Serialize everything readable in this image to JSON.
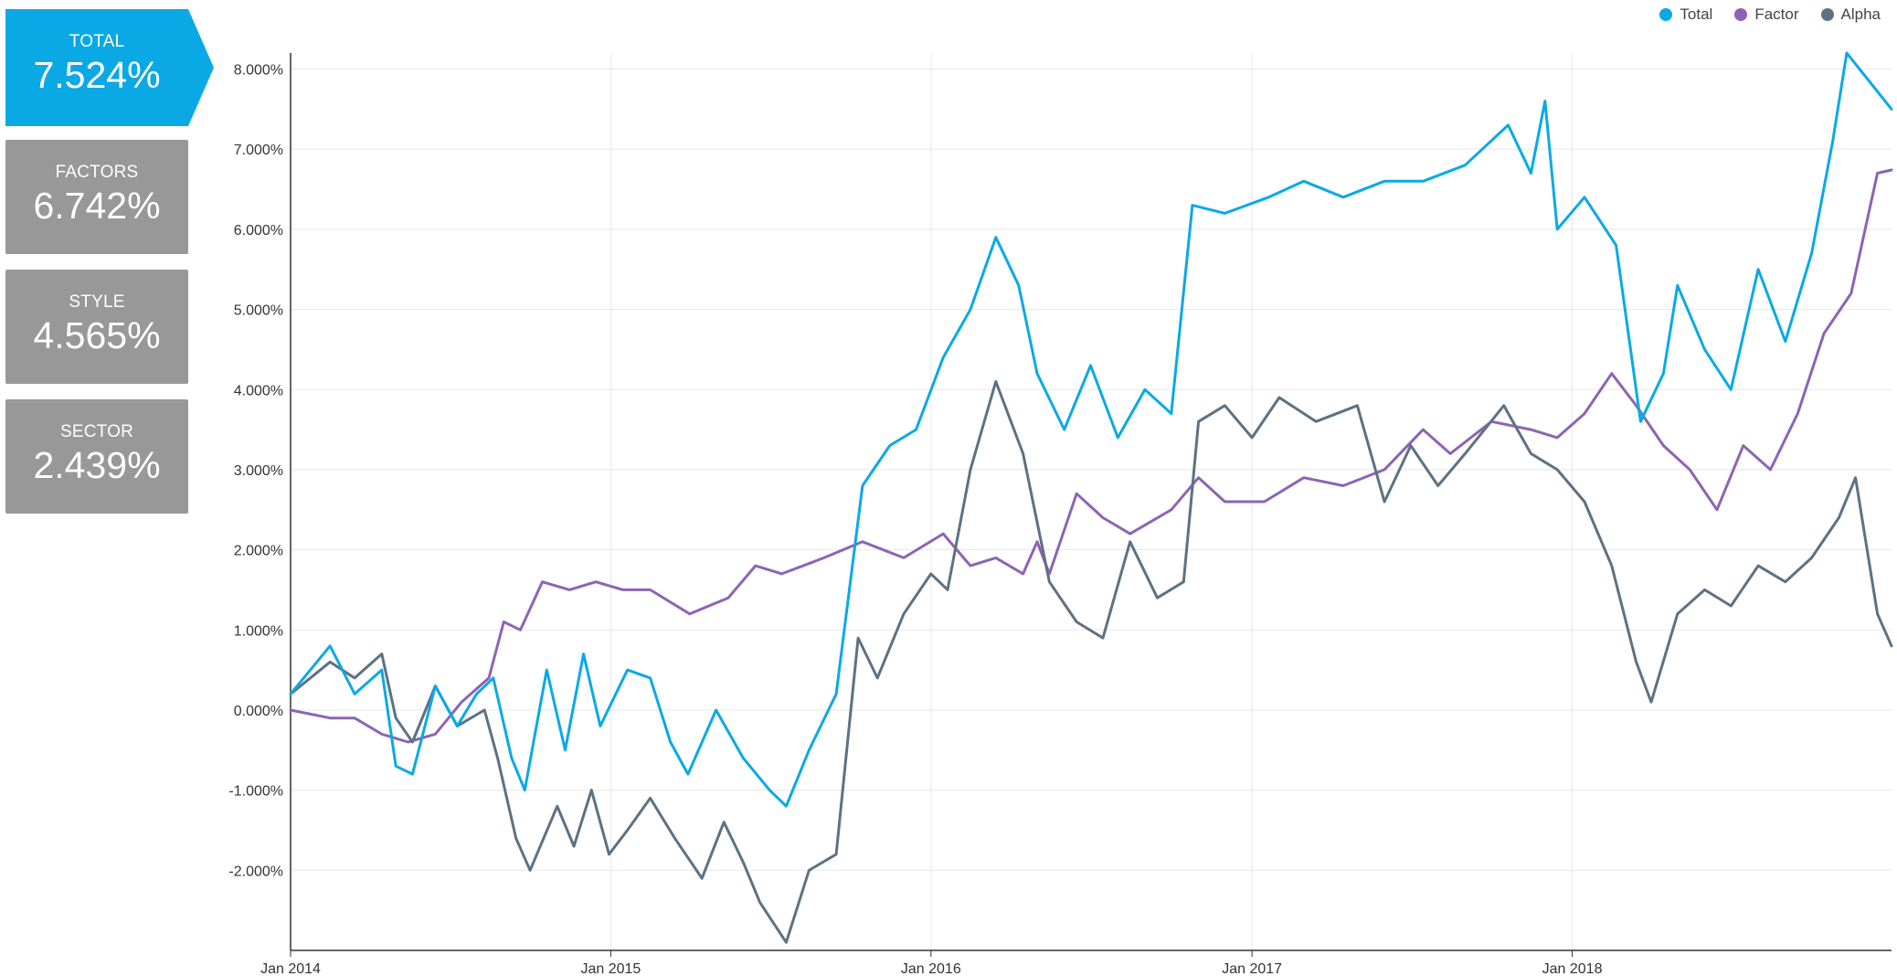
{
  "cards": [
    {
      "label": "TOTAL",
      "value": "7.524%"
    },
    {
      "label": "FACTORS",
      "value": "6.742%"
    },
    {
      "label": "STYLE",
      "value": "4.565%"
    },
    {
      "label": "SECTOR",
      "value": "2.439%"
    }
  ],
  "colors": {
    "total": "#0aa9e6",
    "factor": "#8e63b5",
    "alpha": "#5c7283",
    "card": "#989898"
  },
  "chart_data": {
    "type": "line",
    "x_axis": {
      "ticks": [
        "Jan 2014",
        "Jan 2015",
        "Jan 2016",
        "Jan 2017",
        "Jan 2018"
      ],
      "range": [
        "2014-01-01",
        "2018-12-31"
      ]
    },
    "y_axis": {
      "ticks": [
        "-2.000%",
        "-1.000%",
        "0.000%",
        "1.000%",
        "2.000%",
        "3.000%",
        "4.000%",
        "5.000%",
        "6.000%",
        "7.000%",
        "8.000%"
      ],
      "range": [
        -3.0,
        8.2
      ]
    },
    "grid": true,
    "legend_position": "top-right",
    "series": [
      {
        "name": "Total",
        "points": [
          [
            "2014-01-01",
            0.2
          ],
          [
            "2014-02-15",
            0.8
          ],
          [
            "2014-03-15",
            0.2
          ],
          [
            "2014-04-15",
            0.5
          ],
          [
            "2014-05-01",
            -0.7
          ],
          [
            "2014-05-20",
            -0.8
          ],
          [
            "2014-06-15",
            0.3
          ],
          [
            "2014-07-10",
            -0.2
          ],
          [
            "2014-08-01",
            0.2
          ],
          [
            "2014-08-20",
            0.4
          ],
          [
            "2014-09-10",
            -0.6
          ],
          [
            "2014-09-25",
            -1.0
          ],
          [
            "2014-10-20",
            0.5
          ],
          [
            "2014-11-10",
            -0.5
          ],
          [
            "2014-12-01",
            0.7
          ],
          [
            "2014-12-20",
            -0.2
          ],
          [
            "2015-01-20",
            0.5
          ],
          [
            "2015-02-15",
            0.4
          ],
          [
            "2015-03-10",
            -0.4
          ],
          [
            "2015-03-30",
            -0.8
          ],
          [
            "2015-05-01",
            0.0
          ],
          [
            "2015-06-01",
            -0.6
          ],
          [
            "2015-07-01",
            -1.0
          ],
          [
            "2015-07-20",
            -1.2
          ],
          [
            "2015-08-15",
            -0.5
          ],
          [
            "2015-09-15",
            0.2
          ],
          [
            "2015-10-15",
            2.8
          ],
          [
            "2015-11-15",
            3.3
          ],
          [
            "2015-12-15",
            3.5
          ],
          [
            "2016-01-15",
            4.4
          ],
          [
            "2016-02-15",
            5.0
          ],
          [
            "2016-03-15",
            5.9
          ],
          [
            "2016-04-10",
            5.3
          ],
          [
            "2016-05-01",
            4.2
          ],
          [
            "2016-06-01",
            3.5
          ],
          [
            "2016-07-01",
            4.3
          ],
          [
            "2016-08-01",
            3.4
          ],
          [
            "2016-09-01",
            4.0
          ],
          [
            "2016-10-01",
            3.7
          ],
          [
            "2016-10-25",
            6.3
          ],
          [
            "2016-12-01",
            6.2
          ],
          [
            "2017-01-20",
            6.4
          ],
          [
            "2017-03-01",
            6.6
          ],
          [
            "2017-04-15",
            6.4
          ],
          [
            "2017-06-01",
            6.6
          ],
          [
            "2017-07-15",
            6.6
          ],
          [
            "2017-09-01",
            6.8
          ],
          [
            "2017-10-20",
            7.3
          ],
          [
            "2017-11-15",
            6.7
          ],
          [
            "2017-12-01",
            7.6
          ],
          [
            "2017-12-15",
            6.0
          ],
          [
            "2018-01-15",
            6.4
          ],
          [
            "2018-02-20",
            5.8
          ],
          [
            "2018-03-20",
            3.6
          ],
          [
            "2018-04-15",
            4.2
          ],
          [
            "2018-05-01",
            5.3
          ],
          [
            "2018-06-01",
            4.5
          ],
          [
            "2018-07-01",
            4.0
          ],
          [
            "2018-08-01",
            5.5
          ],
          [
            "2018-09-01",
            4.6
          ],
          [
            "2018-10-01",
            5.7
          ],
          [
            "2018-10-25",
            7.1
          ],
          [
            "2018-11-10",
            8.2
          ],
          [
            "2018-12-31",
            7.5
          ]
        ]
      },
      {
        "name": "Factor",
        "points": [
          [
            "2014-01-01",
            0.0
          ],
          [
            "2014-02-15",
            -0.1
          ],
          [
            "2014-03-15",
            -0.1
          ],
          [
            "2014-04-15",
            -0.3
          ],
          [
            "2014-05-15",
            -0.4
          ],
          [
            "2014-06-15",
            -0.3
          ],
          [
            "2014-07-15",
            0.1
          ],
          [
            "2014-08-15",
            0.4
          ],
          [
            "2014-09-01",
            1.1
          ],
          [
            "2014-09-20",
            1.0
          ],
          [
            "2014-10-15",
            1.6
          ],
          [
            "2014-11-15",
            1.5
          ],
          [
            "2014-12-15",
            1.6
          ],
          [
            "2015-01-15",
            1.5
          ],
          [
            "2015-02-15",
            1.5
          ],
          [
            "2015-04-01",
            1.2
          ],
          [
            "2015-05-15",
            1.4
          ],
          [
            "2015-06-15",
            1.8
          ],
          [
            "2015-07-15",
            1.7
          ],
          [
            "2015-09-01",
            1.9
          ],
          [
            "2015-10-15",
            2.1
          ],
          [
            "2015-12-01",
            1.9
          ],
          [
            "2016-01-15",
            2.2
          ],
          [
            "2016-02-15",
            1.8
          ],
          [
            "2016-03-15",
            1.9
          ],
          [
            "2016-04-15",
            1.7
          ],
          [
            "2016-05-01",
            2.1
          ],
          [
            "2016-05-15",
            1.7
          ],
          [
            "2016-06-15",
            2.7
          ],
          [
            "2016-07-15",
            2.4
          ],
          [
            "2016-08-15",
            2.2
          ],
          [
            "2016-10-01",
            2.5
          ],
          [
            "2016-11-01",
            2.9
          ],
          [
            "2016-12-01",
            2.6
          ],
          [
            "2017-01-15",
            2.6
          ],
          [
            "2017-03-01",
            2.9
          ],
          [
            "2017-04-15",
            2.8
          ],
          [
            "2017-06-01",
            3.0
          ],
          [
            "2017-07-15",
            3.5
          ],
          [
            "2017-08-15",
            3.2
          ],
          [
            "2017-10-01",
            3.6
          ],
          [
            "2017-11-15",
            3.5
          ],
          [
            "2017-12-15",
            3.4
          ],
          [
            "2018-01-15",
            3.7
          ],
          [
            "2018-02-15",
            4.2
          ],
          [
            "2018-03-15",
            3.8
          ],
          [
            "2018-04-15",
            3.3
          ],
          [
            "2018-05-15",
            3.0
          ],
          [
            "2018-06-15",
            2.5
          ],
          [
            "2018-07-15",
            3.3
          ],
          [
            "2018-08-15",
            3.0
          ],
          [
            "2018-09-15",
            3.7
          ],
          [
            "2018-10-15",
            4.7
          ],
          [
            "2018-11-15",
            5.2
          ],
          [
            "2018-12-15",
            6.7
          ],
          [
            "2018-12-31",
            6.74
          ]
        ]
      },
      {
        "name": "Alpha",
        "points": [
          [
            "2014-01-01",
            0.2
          ],
          [
            "2014-02-15",
            0.6
          ],
          [
            "2014-03-15",
            0.4
          ],
          [
            "2014-04-15",
            0.7
          ],
          [
            "2014-05-01",
            -0.1
          ],
          [
            "2014-05-20",
            -0.4
          ],
          [
            "2014-06-15",
            0.3
          ],
          [
            "2014-07-10",
            -0.2
          ],
          [
            "2014-08-10",
            0.0
          ],
          [
            "2014-08-25",
            -0.6
          ],
          [
            "2014-09-15",
            -1.6
          ],
          [
            "2014-10-01",
            -2.0
          ],
          [
            "2014-11-01",
            -1.2
          ],
          [
            "2014-11-20",
            -1.7
          ],
          [
            "2014-12-10",
            -1.0
          ],
          [
            "2014-12-30",
            -1.8
          ],
          [
            "2015-01-20",
            -1.5
          ],
          [
            "2015-02-15",
            -1.1
          ],
          [
            "2015-03-15",
            -1.6
          ],
          [
            "2015-04-15",
            -2.1
          ],
          [
            "2015-05-10",
            -1.4
          ],
          [
            "2015-06-01",
            -1.9
          ],
          [
            "2015-06-20",
            -2.4
          ],
          [
            "2015-07-20",
            -2.9
          ],
          [
            "2015-08-15",
            -2.0
          ],
          [
            "2015-09-15",
            -1.8
          ],
          [
            "2015-10-10",
            0.9
          ],
          [
            "2015-11-01",
            0.4
          ],
          [
            "2015-12-01",
            1.2
          ],
          [
            "2016-01-01",
            1.7
          ],
          [
            "2016-01-20",
            1.5
          ],
          [
            "2016-02-15",
            3.0
          ],
          [
            "2016-03-15",
            4.1
          ],
          [
            "2016-04-15",
            3.2
          ],
          [
            "2016-05-15",
            1.6
          ],
          [
            "2016-06-15",
            1.1
          ],
          [
            "2016-07-15",
            0.9
          ],
          [
            "2016-08-15",
            2.1
          ],
          [
            "2016-09-15",
            1.4
          ],
          [
            "2016-10-15",
            1.6
          ],
          [
            "2016-11-01",
            3.6
          ],
          [
            "2016-12-01",
            3.8
          ],
          [
            "2017-01-01",
            3.4
          ],
          [
            "2017-02-01",
            3.9
          ],
          [
            "2017-03-15",
            3.6
          ],
          [
            "2017-05-01",
            3.8
          ],
          [
            "2017-06-01",
            2.6
          ],
          [
            "2017-07-01",
            3.3
          ],
          [
            "2017-08-01",
            2.8
          ],
          [
            "2017-09-01",
            3.2
          ],
          [
            "2017-10-15",
            3.8
          ],
          [
            "2017-11-15",
            3.2
          ],
          [
            "2017-12-15",
            3.0
          ],
          [
            "2018-01-15",
            2.6
          ],
          [
            "2018-02-15",
            1.8
          ],
          [
            "2018-03-15",
            0.6
          ],
          [
            "2018-04-01",
            0.1
          ],
          [
            "2018-05-01",
            1.2
          ],
          [
            "2018-06-01",
            1.5
          ],
          [
            "2018-07-01",
            1.3
          ],
          [
            "2018-08-01",
            1.8
          ],
          [
            "2018-09-01",
            1.6
          ],
          [
            "2018-10-01",
            1.9
          ],
          [
            "2018-11-01",
            2.4
          ],
          [
            "2018-11-20",
            2.9
          ],
          [
            "2018-12-15",
            1.2
          ],
          [
            "2018-12-31",
            0.8
          ]
        ]
      }
    ]
  }
}
